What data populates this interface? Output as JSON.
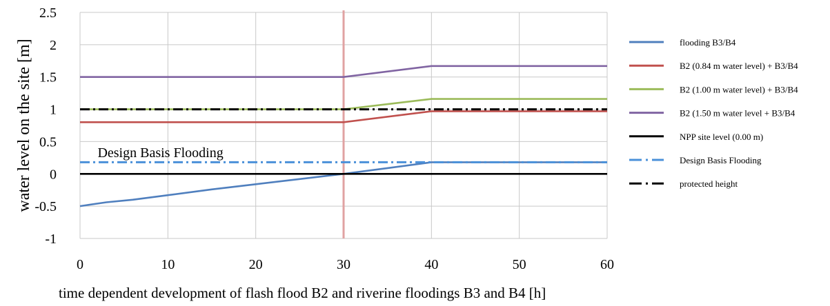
{
  "chart_data": {
    "type": "line",
    "title": "",
    "xlabel": "time dependent development of flash flood B2 and riverine floodings B3 and B4 [h]",
    "ylabel": "water level on the site [m]",
    "xlim": [
      0,
      60
    ],
    "ylim": [
      -1,
      2.5
    ],
    "xticks": [
      0,
      10,
      20,
      30,
      40,
      50,
      60
    ],
    "yticks": [
      "-1",
      "-0.5",
      "0",
      "0.5",
      "1",
      "1.5",
      "2",
      "2.5"
    ],
    "grid": true,
    "legend_position": "right",
    "vertical_marker": {
      "x": 30,
      "color": "#e0a2a2"
    },
    "annotations": [
      {
        "text": "Design Basis Flooding",
        "x": 2,
        "y": 0.26
      }
    ],
    "series": [
      {
        "name": "flooding B3/B4",
        "color": "#4f7fbe",
        "style": "solid",
        "x": [
          0,
          3,
          6,
          10,
          15,
          20,
          25,
          30,
          35,
          40,
          50,
          60
        ],
        "y": [
          -0.5,
          -0.44,
          -0.4,
          -0.33,
          -0.24,
          -0.16,
          -0.08,
          0.0,
          0.09,
          0.18,
          0.18,
          0.18
        ]
      },
      {
        "name": "B2 (0.84 m water level) + B3/B4",
        "color": "#c0504d",
        "style": "solid",
        "x": [
          0,
          30,
          40,
          60
        ],
        "y": [
          0.8,
          0.8,
          0.97,
          0.97
        ]
      },
      {
        "name": "B2 (1.00 m water level) + B3/B4",
        "color": "#9bbb59",
        "style": "solid",
        "x": [
          0,
          30,
          40,
          60
        ],
        "y": [
          1.0,
          1.0,
          1.16,
          1.16
        ]
      },
      {
        "name": "B2 (1.50 m water level + B3/B4",
        "color": "#8064a2",
        "style": "solid",
        "x": [
          0,
          30,
          40,
          60
        ],
        "y": [
          1.5,
          1.5,
          1.67,
          1.67
        ]
      },
      {
        "name": "NPP site level (0.00 m)",
        "color": "#000000",
        "style": "solid",
        "x": [
          0,
          60
        ],
        "y": [
          0,
          0
        ]
      },
      {
        "name": "Design Basis Flooding",
        "color": "#4a90d9",
        "style": "dashdot",
        "x": [
          0,
          60
        ],
        "y": [
          0.18,
          0.18
        ]
      },
      {
        "name": "protected height",
        "color": "#000000",
        "style": "dashdot",
        "x": [
          0,
          60
        ],
        "y": [
          1.0,
          1.0
        ]
      }
    ]
  }
}
